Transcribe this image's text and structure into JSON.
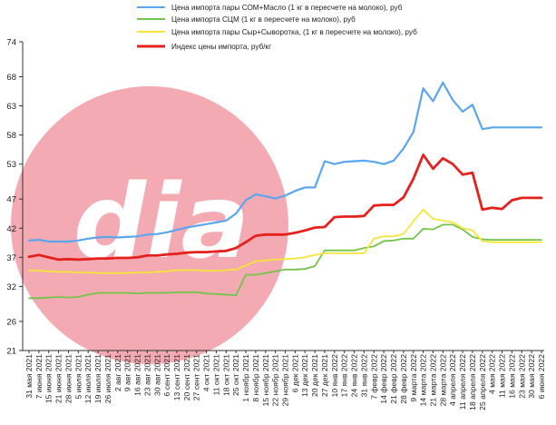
{
  "chart_data": {
    "type": "line",
    "title": "",
    "xlabel": "",
    "ylabel": "",
    "ylim": [
      21,
      74
    ],
    "yticks": [
      21,
      26,
      32,
      37,
      42,
      47,
      53,
      58,
      63,
      68,
      74
    ],
    "grid": false,
    "legend_position": "top",
    "watermark": "dia",
    "watermark_color": "#f19ba5",
    "x": [
      "31 мая 2021",
      "7 июня 2021",
      "15 июня 2021",
      "21 июня 2021",
      "28 июня 2021",
      "5 июля 2021",
      "12 июля 2021",
      "19 июля 2021",
      "26 июля 2021",
      "2 авг 2021",
      "9 авг 2021",
      "16 авг 2021",
      "23 авг 2021",
      "30 авг 2021",
      "6 сент 2021",
      "13 сент 2021",
      "20 сент 2021",
      "27 сент 2021",
      "4 окт 2021",
      "11 окт 2021",
      "18 окт 2021",
      "25 окт 2021",
      "1 ноябр 2021",
      "8 ноябр 2021",
      "15 ноябр 2021",
      "22 ноябр 2021",
      "29 ноябр 2021",
      "6 дек 2021",
      "13 дек 2021",
      "20 дек 2021",
      "27 дек 2021",
      "10 янв 2022",
      "17 янв 2022",
      "24 янв 2022",
      "31 янв 2022",
      "7 февр 2022",
      "14 февр 2022",
      "21 февр 2022",
      "28 февр 2022",
      "9 марта 2022",
      "14 марта 2022",
      "21 марта 2022",
      "28 марта 2022",
      "4 апреля 2022",
      "11 апреля 2022",
      "18 апреля 2022",
      "25 апреля 2022",
      "4 мая 2022",
      "11 мая 2022",
      "16 мая 2022",
      "23 мая 2022",
      "30 мая 2022",
      "6 июня 2022"
    ],
    "series": [
      {
        "name": "Цена импорта пары СОМ+Масло  (1 кг в пересчете на молоко), руб",
        "color": "#5aa7f0",
        "values": [
          39.9,
          40.0,
          39.7,
          39.7,
          39.7,
          39.9,
          40.2,
          40.4,
          40.5,
          40.4,
          40.5,
          40.6,
          40.9,
          41.0,
          41.3,
          41.7,
          42.1,
          42.4,
          42.7,
          43.0,
          43.3,
          44.5,
          46.8,
          47.8,
          47.5,
          47.1,
          47.6,
          48.4,
          49.0,
          49.0,
          53.5,
          53.0,
          53.4,
          53.5,
          53.6,
          53.4,
          53.0,
          53.6,
          55.7,
          58.5,
          66.0,
          63.8,
          67.0,
          64.0,
          62.0,
          63.2,
          59.0,
          59.3,
          59.3,
          59.3,
          59.3,
          59.3,
          59.3
        ]
      },
      {
        "name": "Цена импорта СЦМ  (1 кг в пересчете на молоко), руб",
        "color": "#74c44a",
        "values": [
          30.0,
          30.0,
          30.1,
          30.2,
          30.1,
          30.2,
          30.6,
          30.9,
          30.9,
          30.9,
          30.9,
          30.8,
          30.9,
          30.9,
          30.9,
          31.0,
          31.0,
          31.0,
          30.8,
          30.7,
          30.6,
          30.5,
          34.0,
          34.0,
          34.3,
          34.6,
          34.9,
          34.9,
          35.0,
          35.5,
          38.2,
          38.2,
          38.2,
          38.2,
          38.6,
          38.9,
          39.8,
          39.9,
          40.2,
          40.2,
          41.9,
          41.8,
          42.6,
          42.6,
          41.8,
          40.5,
          40.1,
          40.0,
          40.0,
          40.0,
          40.0,
          40.0,
          40.0
        ]
      },
      {
        "name": "Цена импорта пары Сыр+Сыворотка,  (1 кг в пересчете на молоко), руб",
        "color": "#f5e53a",
        "values": [
          34.8,
          34.7,
          34.6,
          34.5,
          34.5,
          34.4,
          34.4,
          34.3,
          34.3,
          34.3,
          34.3,
          34.4,
          34.4,
          34.5,
          34.6,
          34.8,
          34.8,
          34.8,
          34.7,
          34.7,
          34.8,
          34.9,
          35.6,
          36.3,
          36.5,
          36.6,
          36.7,
          36.8,
          37.0,
          37.4,
          37.7,
          37.7,
          37.7,
          37.7,
          37.7,
          40.2,
          40.6,
          40.6,
          41.0,
          43.2,
          45.2,
          43.6,
          43.3,
          43.0,
          42.0,
          41.6,
          39.8,
          39.6,
          39.6,
          39.6,
          39.6,
          39.6,
          39.6
        ]
      },
      {
        "name": "Индекс цены импорта, руб/кг",
        "color": "#e5211d",
        "values": [
          37.1,
          37.4,
          37.0,
          36.6,
          36.7,
          36.6,
          36.7,
          36.8,
          36.8,
          36.9,
          36.9,
          37.0,
          37.3,
          37.3,
          37.5,
          37.6,
          37.8,
          37.9,
          37.9,
          38.0,
          38.1,
          38.6,
          39.6,
          40.7,
          40.9,
          40.9,
          40.9,
          41.2,
          41.6,
          42.1,
          42.2,
          43.9,
          44.0,
          44.0,
          44.1,
          45.9,
          46.0,
          46.0,
          47.3,
          50.5,
          54.6,
          52.2,
          54.0,
          53.0,
          51.2,
          51.5,
          45.2,
          45.5,
          45.3,
          46.8,
          47.2,
          47.2,
          47.2
        ]
      }
    ]
  }
}
